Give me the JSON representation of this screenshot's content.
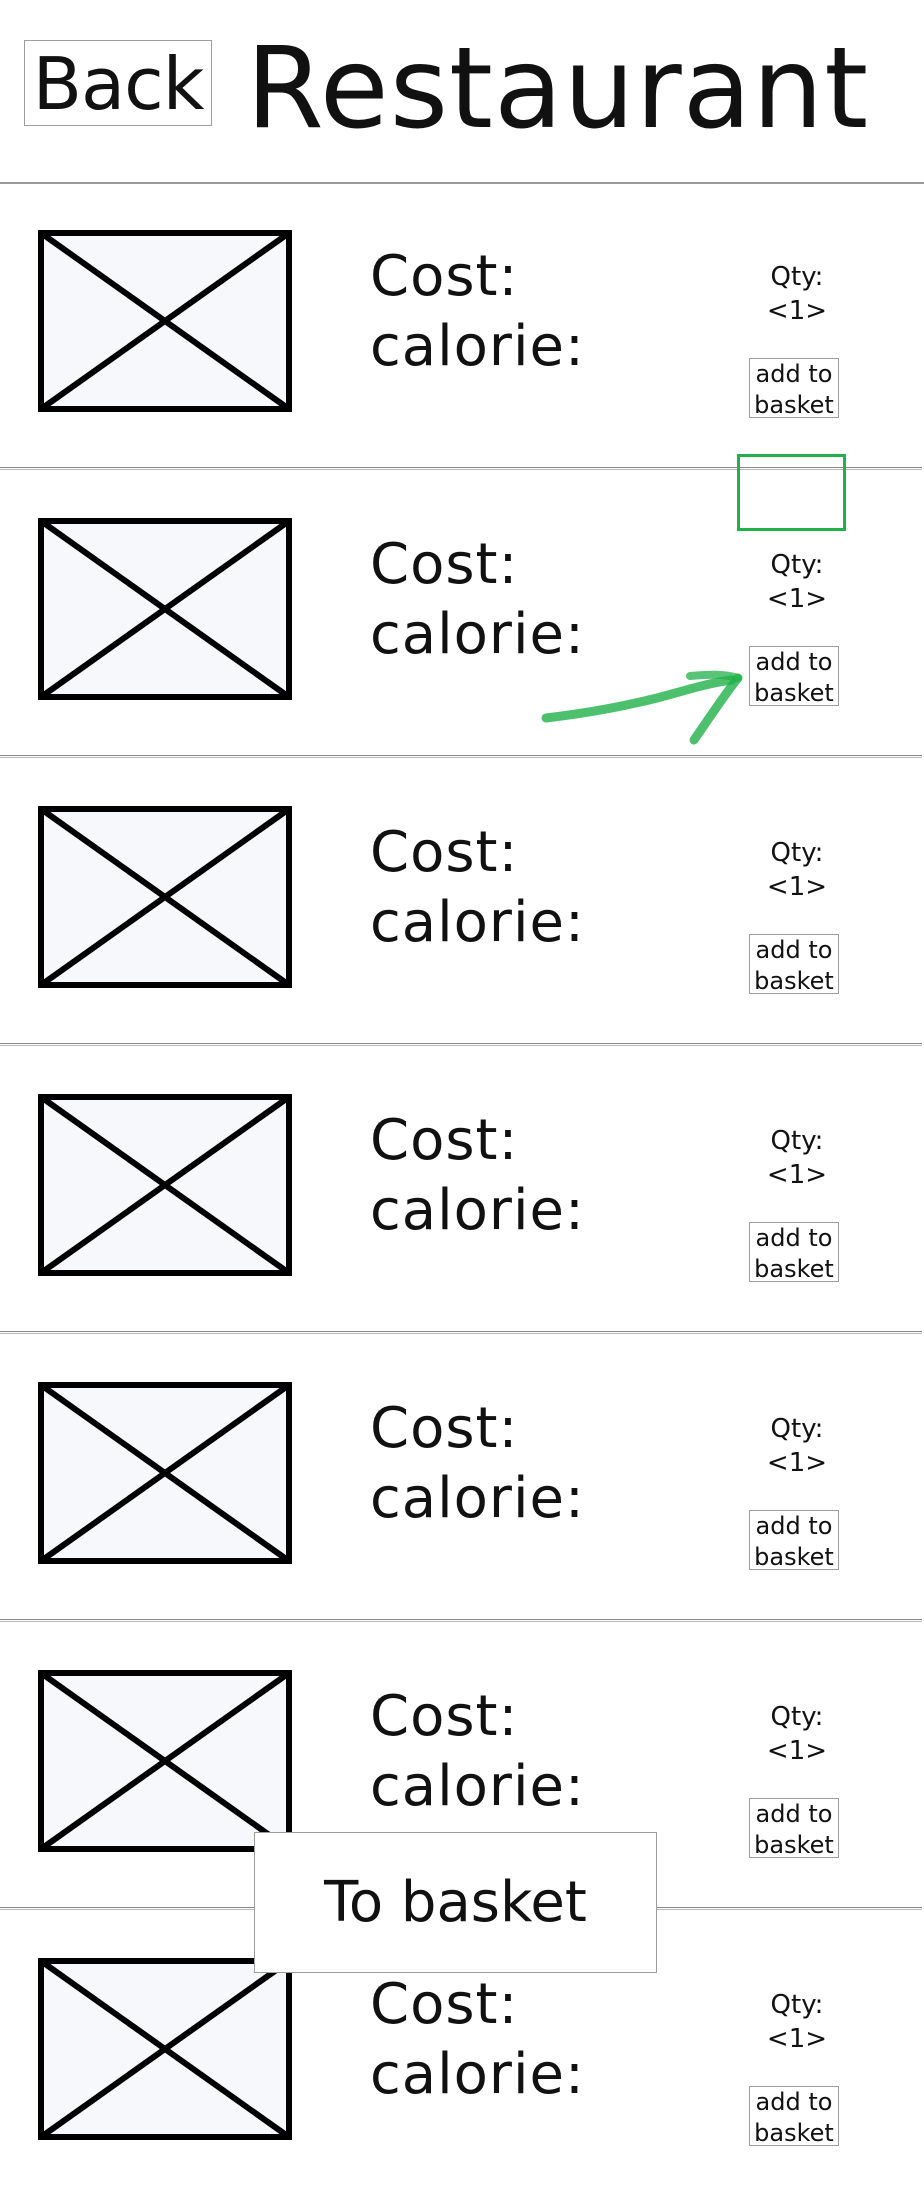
{
  "header": {
    "back_label": "Back",
    "title": "Restaurant"
  },
  "menu": {
    "items": [
      {
        "cost_label": "Cost:",
        "calorie_label": "calorie:",
        "qty_label": "Qty:",
        "qty_prefix": "<",
        "qty_value": "1",
        "qty_suffix": ">",
        "add_line1": "add to",
        "add_line2": "basket",
        "image_icon": "image-placeholder-icon"
      },
      {
        "cost_label": "Cost:",
        "calorie_label": "calorie:",
        "qty_label": "Qty:",
        "qty_prefix": "<",
        "qty_value": "1",
        "qty_suffix": ">",
        "add_line1": "add to",
        "add_line2": "basket",
        "image_icon": "image-placeholder-icon"
      },
      {
        "cost_label": "Cost:",
        "calorie_label": "calorie:",
        "qty_label": "Qty:",
        "qty_prefix": "<",
        "qty_value": "1",
        "qty_suffix": ">",
        "add_line1": "add to",
        "add_line2": "basket",
        "image_icon": "image-placeholder-icon"
      },
      {
        "cost_label": "Cost:",
        "calorie_label": "calorie:",
        "qty_label": "Qty:",
        "qty_prefix": "<",
        "qty_value": "1",
        "qty_suffix": ">",
        "add_line1": "add to",
        "add_line2": "basket",
        "image_icon": "image-placeholder-icon"
      },
      {
        "cost_label": "Cost:",
        "calorie_label": "calorie:",
        "qty_label": "Qty:",
        "qty_prefix": "<",
        "qty_value": "1",
        "qty_suffix": ">",
        "add_line1": "add to",
        "add_line2": "basket",
        "image_icon": "image-placeholder-icon"
      },
      {
        "cost_label": "Cost:",
        "calorie_label": "calorie:",
        "qty_label": "Qty:",
        "qty_prefix": "<",
        "qty_value": "1",
        "qty_suffix": ">",
        "add_line1": "add to",
        "add_line2": "basket",
        "image_icon": "image-placeholder-icon"
      },
      {
        "cost_label": "Cost:",
        "calorie_label": "calorie:",
        "qty_label": "Qty:",
        "qty_prefix": "<",
        "qty_value": "1",
        "qty_suffix": ">",
        "add_line1": "add to",
        "add_line2": "basket",
        "image_icon": "image-placeholder-icon"
      }
    ]
  },
  "annotation": {
    "highlighted_item_index": 1,
    "color": "#21b04a",
    "arrow_icon": "arrow-annotation-icon"
  },
  "footer": {
    "to_basket_label": "To basket"
  },
  "colors": {
    "text": "#111111",
    "border": "#9d9d9d",
    "placeholder_fill": "#f6f8fb",
    "highlight": "#21b04a"
  }
}
